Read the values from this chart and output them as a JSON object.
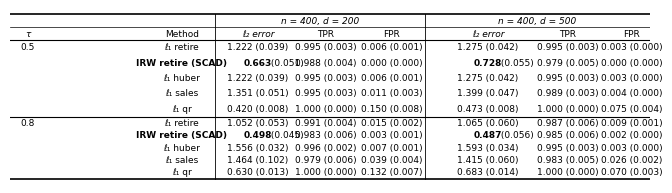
{
  "title_left": "n = 400, d = 200",
  "title_right": "n = 400, d = 500",
  "rows": [
    {
      "tau": "0.5",
      "method": "ℓ₁ retire",
      "l2_200": "1.222 (0.039)",
      "tpr_200": "0.995 (0.003)",
      "fpr_200": "0.006 (0.001)",
      "l2_500": "1.275 (0.042)",
      "tpr_500": "0.995 (0.003)",
      "fpr_500": "0.003 (0.000)",
      "bold_l2_200": false,
      "bold_l2_500": false
    },
    {
      "tau": "",
      "method": "IRW retire (SCAD)",
      "l2_200": "0.663 (0.051)",
      "tpr_200": "0.988 (0.004)",
      "fpr_200": "0.000 (0.000)",
      "l2_500": "0.728 (0.055)",
      "tpr_500": "0.979 (0.005)",
      "fpr_500": "0.000 (0.000)",
      "bold_l2_200": true,
      "bold_l2_500": true
    },
    {
      "tau": "",
      "method": "ℓ₁ huber",
      "l2_200": "1.222 (0.039)",
      "tpr_200": "0.995 (0.003)",
      "fpr_200": "0.006 (0.001)",
      "l2_500": "1.275 (0.042)",
      "tpr_500": "0.995 (0.003)",
      "fpr_500": "0.003 (0.000)",
      "bold_l2_200": false,
      "bold_l2_500": false
    },
    {
      "tau": "",
      "method": "ℓ₁ sales",
      "l2_200": "1.351 (0.051)",
      "tpr_200": "0.995 (0.003)",
      "fpr_200": "0.011 (0.003)",
      "l2_500": "1.399 (0.047)",
      "tpr_500": "0.989 (0.003)",
      "fpr_500": "0.004 (0.000)",
      "bold_l2_200": false,
      "bold_l2_500": false
    },
    {
      "tau": "",
      "method": "ℓ₁ qr",
      "l2_200": "0.420 (0.008)",
      "tpr_200": "1.000 (0.000)",
      "fpr_200": "0.150 (0.008)",
      "l2_500": "0.473 (0.008)",
      "tpr_500": "1.000 (0.000)",
      "fpr_500": "0.075 (0.004)",
      "bold_l2_200": false,
      "bold_l2_500": false
    },
    {
      "tau": "0.8",
      "method": "ℓ₁ retire",
      "l2_200": "1.052 (0.053)",
      "tpr_200": "0.991 (0.004)",
      "fpr_200": "0.015 (0.002)",
      "l2_500": "1.065 (0.060)",
      "tpr_500": "0.987 (0.006)",
      "fpr_500": "0.009 (0.001)",
      "bold_l2_200": false,
      "bold_l2_500": false
    },
    {
      "tau": "",
      "method": "IRW retire (SCAD)",
      "l2_200": "0.498 (0.045)",
      "tpr_200": "0.983 (0.006)",
      "fpr_200": "0.003 (0.001)",
      "l2_500": "0.487 (0.056)",
      "tpr_500": "0.985 (0.006)",
      "fpr_500": "0.002 (0.000)",
      "bold_l2_200": true,
      "bold_l2_500": true
    },
    {
      "tau": "",
      "method": "ℓ₁ huber",
      "l2_200": "1.556 (0.032)",
      "tpr_200": "0.996 (0.002)",
      "fpr_200": "0.007 (0.001)",
      "l2_500": "1.593 (0.034)",
      "tpr_500": "0.995 (0.003)",
      "fpr_500": "0.003 (0.000)",
      "bold_l2_200": false,
      "bold_l2_500": false
    },
    {
      "tau": "",
      "method": "ℓ₁ sales",
      "l2_200": "1.464 (0.102)",
      "tpr_200": "0.979 (0.006)",
      "fpr_200": "0.039 (0.004)",
      "l2_500": "1.415 (0.060)",
      "tpr_500": "0.983 (0.005)",
      "fpr_500": "0.026 (0.002)",
      "bold_l2_200": false,
      "bold_l2_500": false
    },
    {
      "tau": "",
      "method": "ℓ₁ qr",
      "l2_200": "0.630 (0.013)",
      "tpr_200": "1.000 (0.000)",
      "fpr_200": "0.132 (0.007)",
      "l2_500": "0.683 (0.014)",
      "tpr_500": "1.000 (0.000)",
      "fpr_500": "0.070 (0.003)",
      "bold_l2_200": false,
      "bold_l2_500": false
    }
  ],
  "font_size": 6.5,
  "tau_header": "τ",
  "method_header": "Method",
  "l2_header": "ℓ₂ error",
  "tpr_header": "TPR",
  "fpr_header": "FPR"
}
